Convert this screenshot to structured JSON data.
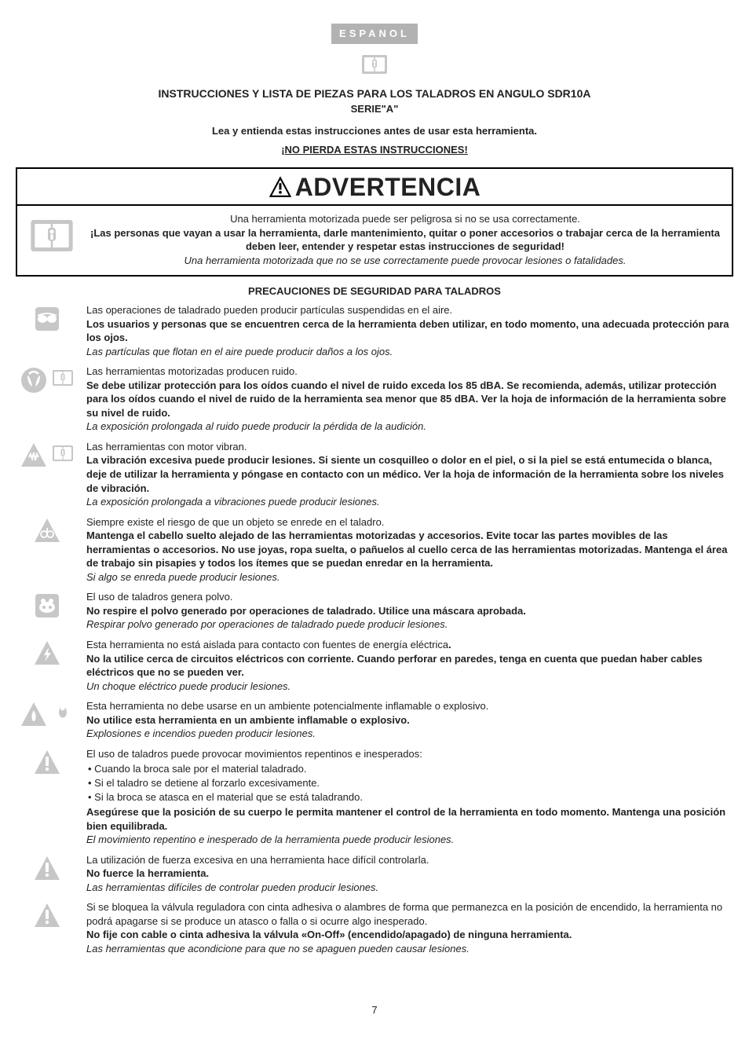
{
  "lang_badge": "ESPANOL",
  "header": {
    "title": "INSTRUCCIONES Y LISTA DE PIEZAS PARA LOS TALADROS EN ANGULO SDR10A",
    "series": "SERIE\"A\"",
    "read": "Lea y entienda estas instrucciones antes de usar esta herramienta.",
    "keep": "¡NO PIERDA ESTAS INSTRUCCIONES!"
  },
  "warning": {
    "label": "ADVERTENCIA",
    "line1": "Una herramienta motorizada puede ser peligrosa si no se usa correctamente.",
    "line2": "¡Las personas que vayan a usar la herramienta, darle mantenimiento, quitar o poner accesorios o trabajar cerca de la herramienta deben leer, entender y respetar estas instrucciones de seguridad!",
    "line3": "Una herramienta motorizada que no se use correctamente puede provocar lesiones o fatalidades."
  },
  "section_title": "PRECAUCIONES DE SEGURIDAD PARA TALADROS",
  "hazards": [
    {
      "icon": "goggles",
      "intro": "Las operaciones de taladrado pueden producir partículas suspendidas en el aire.",
      "bold": "Los usuarios y personas que se encuentren cerca de la herramienta deben utilizar, en todo momento, una adecuada protección para los ojos.",
      "italic": "Las partículas que flotan en el aire puede producir daños a los ojos."
    },
    {
      "icon": "ear-manual",
      "intro": "Las herramientas motorizadas producen ruido.",
      "bold": "Se debe utilizar protección para los oídos cuando el nivel de ruido exceda los 85 dBA. Se recomienda, además, utilizar protección para los oídos cuando el nivel de ruido de la herramienta sea menor que 85 dBA. Ver la hoja de información de la herramienta sobre su nivel de ruido.",
      "italic": "La exposición prolongada al ruido puede producir la pérdida de la audición."
    },
    {
      "icon": "vibration-manual",
      "intro": "Las herramientas con motor vibran.",
      "bold": "La vibración excesiva puede producir lesiones. Si siente un cosquilleo o dolor en el piel, o si la piel se está entumecida o blanca, deje de utilizar la herramienta y póngase en contacto con un médico. Ver la hoja de información de la herramienta sobre los niveles de vibración.",
      "italic": "La exposición prolongada a vibraciones puede producir lesiones."
    },
    {
      "icon": "entangle",
      "intro": "Siempre existe el riesgo de que un objeto se enrede en el taladro.",
      "bold": "Mantenga el cabello suelto alejado de las herramientas motorizadas y accesorios. Evite tocar las partes movibles de las herramientas o accesorios. No use joyas, ropa suelta, o pañuelos al cuello cerca de las herramientas motorizadas. Mantenga el área de trabajo sin pisapies y todos los ítemes que se puedan enredar en la herramienta.",
      "italic": "Si algo se enreda puede producir lesiones."
    },
    {
      "icon": "mask",
      "intro": "El uso de taladros genera polvo.",
      "bold": "No respire el polvo generado por operaciones de taladrado. Utilice una máscara aprobada.",
      "italic": "Respirar polvo generado por operaciones de taladrado puede producir lesiones."
    },
    {
      "icon": "electric",
      "intro_html": "Esta herramienta no está aislada para contacto con fuentes de energía eléctrica",
      "intro_suffix": ".",
      "bold": "No la utilice cerca de circuitos eléctricos con corriente. Cuando perforar en paredes, tenga en cuenta que puedan haber cables eléctricos que no se pueden ver.",
      "italic": "Un choque eléctrico puede producir lesiones."
    },
    {
      "icon": "fire",
      "intro": "Esta herramienta no debe usarse en un ambiente potencialmente inflamable o explosivo.",
      "bold": "No utilice esta herramienta en un ambiente inflamable o explosivo.",
      "italic": "Explosiones e incendios pueden producir lesiones."
    },
    {
      "icon": "exclaim",
      "intro": "El uso de taladros puede provocar movimientos repentinos e inesperados:",
      "bullets": [
        "Cuando la broca sale por el material taladrado.",
        "Si el taladro se detiene al forzarlo excesivamente.",
        "Si la broca se atasca en el material que se está taladrando."
      ],
      "bold": "Asegúrese que la posición de su cuerpo le permita mantener el control de la herramienta en todo momento. Mantenga una posición bien equilibrada.",
      "italic": "El movimiento repentino e inesperado de la herramienta puede producir lesiones."
    },
    {
      "icon": "exclaim",
      "intro": "La utilización de fuerza excesiva en una herramienta hace difícil controlarla.",
      "bold": "No fuerce la herramienta.",
      "italic": "Las herramientas difíciles de controlar pueden producir lesiones."
    },
    {
      "icon": "exclaim",
      "intro": "Si se bloquea la válvula reguladora con cinta adhesiva o alambres de forma que permanezca en la posición de encendido, la herramienta no podrá apagarse si se produce un atasco o falla o si ocurre algo inesperado.",
      "bold": "No fije con cable o cinta adhesiva la válvula «On-Off» (encendido/apagado) de ninguna herramienta.",
      "italic": "Las herramientas que acondicione para que no se apaguen pueden causar lesiones."
    }
  ],
  "page_number": "7",
  "colors": {
    "badge_bg": "#b2b2b2",
    "icon_gray": "#c7c7c7",
    "text": "#222222",
    "border": "#000000"
  }
}
